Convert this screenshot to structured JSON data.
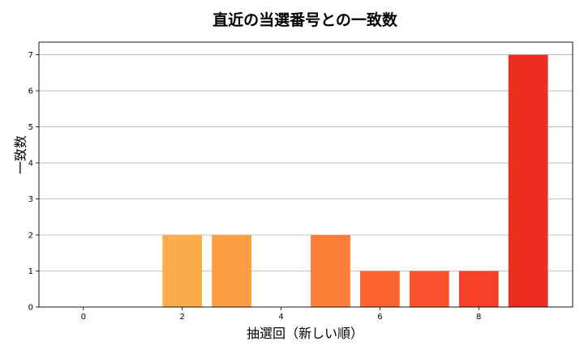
{
  "chart_data": {
    "type": "bar",
    "title": "直近の当選番号との一致数",
    "xlabel": "抽選回（新しい順）",
    "ylabel": "一致数",
    "categories": [
      0,
      1,
      2,
      3,
      4,
      5,
      6,
      7,
      8,
      9
    ],
    "values": [
      0,
      0,
      2,
      2,
      0,
      2,
      1,
      1,
      1,
      7
    ],
    "bar_colors": [
      "#feca65",
      "#feb853",
      "#fdac4b",
      "#fd9e43",
      "#fd8d3c",
      "#fc7d37",
      "#fc6430",
      "#fb5230",
      "#f64128",
      "#ed2f22"
    ],
    "xticks": [
      0,
      2,
      4,
      6,
      8
    ],
    "yticks": [
      0,
      1,
      2,
      3,
      4,
      5,
      6,
      7
    ],
    "xlim": [
      -0.9,
      9.9
    ],
    "ylim": [
      0,
      7.35
    ],
    "grid": "y",
    "legend": null
  }
}
